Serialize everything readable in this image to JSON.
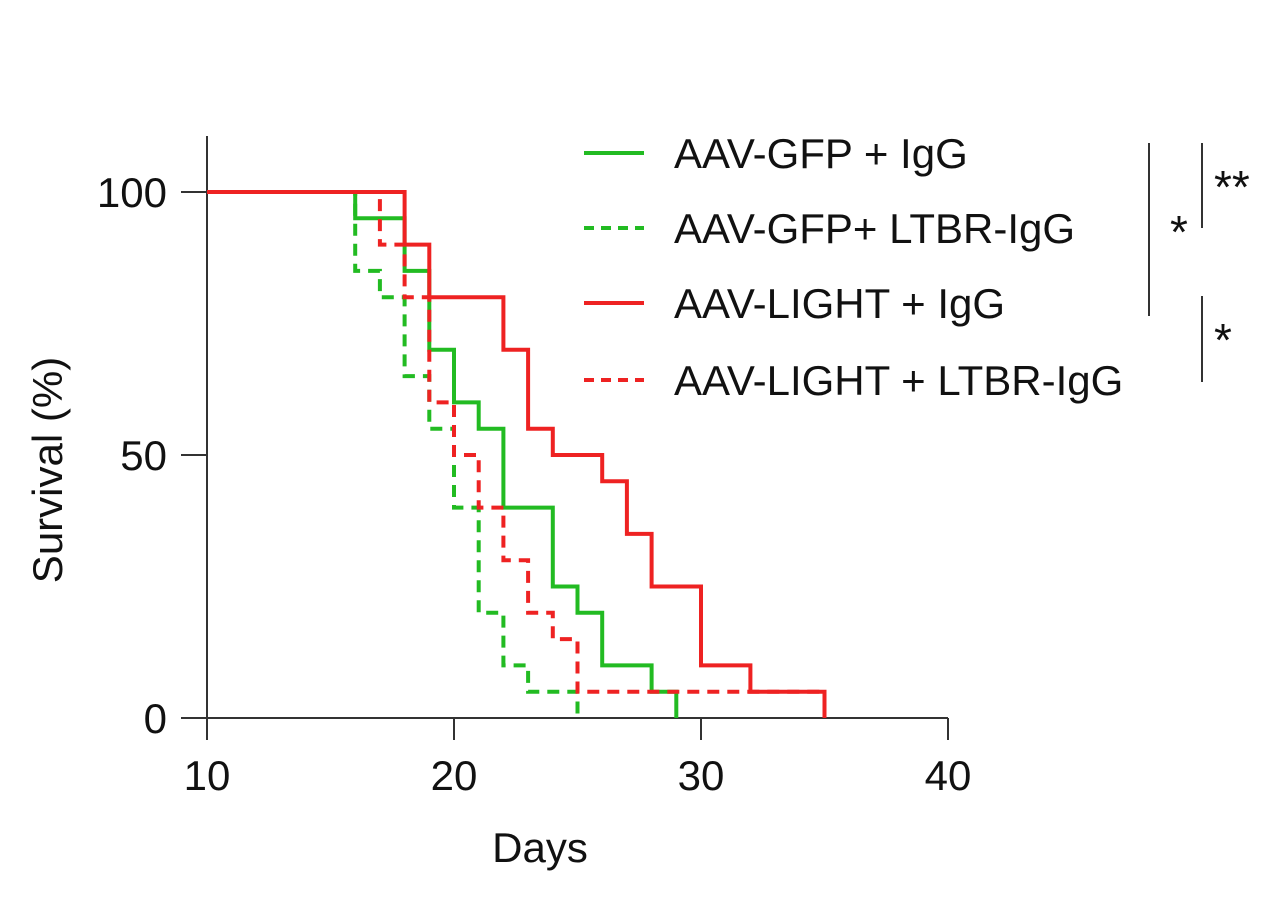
{
  "chart_data": {
    "type": "line",
    "step": true,
    "xlabel": "Days",
    "ylabel": "Survival (%)",
    "xlim": [
      10,
      40
    ],
    "ylim": [
      0,
      100
    ],
    "xticks": [
      10,
      20,
      30,
      40
    ],
    "yticks": [
      0,
      50,
      100
    ],
    "grid": false,
    "legend_position": "top-right",
    "series": [
      {
        "name": "AAV-GFP + IgG",
        "color": "#22bb22",
        "dashed": false,
        "x": [
          10,
          16,
          18,
          19,
          20,
          21,
          22,
          24,
          25,
          26,
          28,
          29
        ],
        "y": [
          100,
          95,
          85,
          70,
          60,
          55,
          40,
          25,
          20,
          10,
          5,
          0
        ]
      },
      {
        "name": "AAV-GFP+ LTBR-IgG",
        "color": "#22bb22",
        "dashed": true,
        "x": [
          10,
          16,
          17,
          18,
          19,
          20,
          21,
          22,
          23,
          25
        ],
        "y": [
          100,
          85,
          80,
          65,
          55,
          40,
          20,
          10,
          5,
          0
        ]
      },
      {
        "name": "AAV-LIGHT + IgG",
        "color": "#ee2222",
        "dashed": false,
        "x": [
          10,
          18,
          19,
          22,
          23,
          24,
          26,
          27,
          28,
          30,
          32,
          35
        ],
        "y": [
          100,
          90,
          80,
          70,
          55,
          50,
          45,
          35,
          25,
          10,
          5,
          0
        ]
      },
      {
        "name": "AAV-LIGHT + LTBR-IgG",
        "color": "#ee2222",
        "dashed": true,
        "x": [
          10,
          17,
          18,
          19,
          20,
          21,
          22,
          23,
          24,
          25,
          35
        ],
        "y": [
          100,
          90,
          80,
          60,
          50,
          40,
          30,
          20,
          15,
          5,
          0
        ]
      }
    ],
    "significance": [
      {
        "label": "*",
        "between": [
          "AAV-GFP + IgG",
          "AAV-LIGHT + IgG"
        ]
      },
      {
        "label": "**",
        "between": [
          "AAV-GFP + IgG",
          "AAV-GFP+ LTBR-IgG"
        ]
      },
      {
        "label": "*",
        "between": [
          "AAV-LIGHT + IgG",
          "AAV-LIGHT + LTBR-IgG"
        ]
      }
    ]
  }
}
